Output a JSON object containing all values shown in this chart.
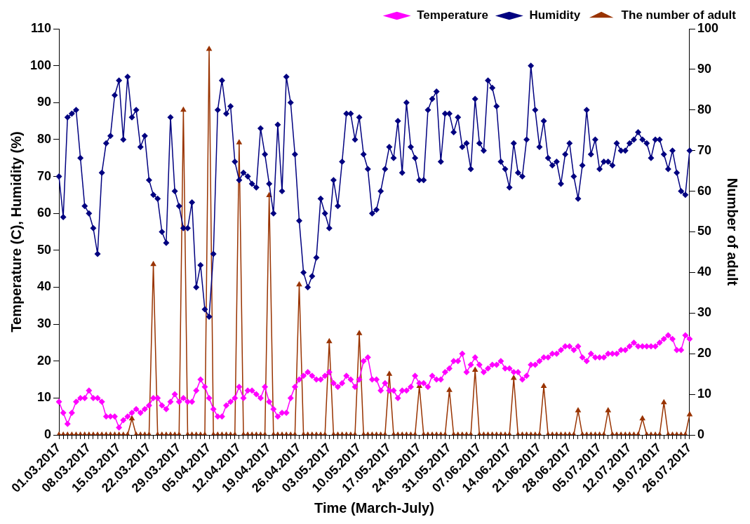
{
  "chart_data": {
    "type": "line",
    "xlabel": "Time (March-July)",
    "ylabel": "Temperature (C), Humidity (%)",
    "y2label": "Number of adult",
    "legend": "top right",
    "categories": [
      "01.03.2017",
      null,
      null,
      null,
      null,
      null,
      null,
      "08.03.2017",
      null,
      null,
      null,
      null,
      null,
      null,
      "15.03.2017",
      null,
      null,
      null,
      null,
      null,
      null,
      "22.03.2017",
      null,
      null,
      null,
      null,
      null,
      null,
      "29.03.2017",
      null,
      null,
      null,
      null,
      null,
      null,
      "05.04.2017",
      null,
      null,
      null,
      null,
      null,
      null,
      "12.04.2017",
      null,
      null,
      null,
      null,
      null,
      null,
      "19.04.2017",
      null,
      null,
      null,
      null,
      null,
      null,
      "26.04.2017",
      null,
      null,
      null,
      null,
      null,
      null,
      "03.05.2017",
      null,
      null,
      null,
      null,
      null,
      null,
      "10.05.2017",
      null,
      null,
      null,
      null,
      null,
      null,
      "17.05.2017",
      null,
      null,
      null,
      null,
      null,
      null,
      "24.05.2017",
      null,
      null,
      null,
      null,
      null,
      null,
      "31.05.2017",
      null,
      null,
      null,
      null,
      null,
      null,
      "07.06.2017",
      null,
      null,
      null,
      null,
      null,
      null,
      "14.06.2017",
      null,
      null,
      null,
      null,
      null,
      null,
      "21.06.2017",
      null,
      null,
      null,
      null,
      null,
      null,
      "28.06.2017",
      null,
      null,
      null,
      null,
      null,
      null,
      "05.07.2017",
      null,
      null,
      null,
      null,
      null,
      null,
      "12.07.2017",
      null,
      null,
      null,
      null,
      null,
      null,
      "19.07.2017",
      null,
      null,
      null,
      null,
      null,
      null,
      "26.07.2017"
    ],
    "ylim": [
      0,
      110
    ],
    "yticks": [
      0,
      10,
      20,
      30,
      40,
      50,
      60,
      70,
      80,
      90,
      100,
      110
    ],
    "y2lim": [
      0,
      100
    ],
    "y2ticks": [
      0,
      10,
      20,
      30,
      40,
      50,
      60,
      70,
      80,
      90,
      100
    ],
    "series": [
      {
        "name": "Temperature",
        "color": "#ff00ff",
        "marker": "diamond",
        "values": [
          9,
          6,
          3,
          6,
          9,
          10,
          10,
          12,
          10,
          10,
          9,
          5,
          5,
          5,
          2,
          4,
          5,
          6,
          7,
          6,
          7,
          8,
          10,
          10,
          8,
          7,
          9,
          11,
          9,
          10,
          9,
          9,
          12,
          15,
          13,
          10,
          7,
          5,
          5,
          8,
          9,
          10,
          13,
          10,
          12,
          12,
          11,
          10,
          13,
          9,
          7,
          5,
          6,
          6,
          10,
          13,
          15,
          16,
          17,
          16,
          15,
          15,
          16,
          17,
          14,
          13,
          14,
          16,
          15,
          13,
          15,
          20,
          21,
          15,
          15,
          12,
          14,
          12,
          12,
          10,
          12,
          12,
          13,
          16,
          14,
          14,
          13,
          16,
          15,
          15,
          17,
          18,
          20,
          20,
          22,
          17,
          19,
          21,
          19,
          17,
          18,
          19,
          19,
          20,
          18,
          18,
          17,
          17,
          15,
          16,
          19,
          19,
          20,
          21,
          21,
          22,
          22,
          23,
          24,
          24,
          23,
          24,
          21,
          20,
          22,
          21,
          21,
          21,
          22,
          22,
          22,
          23,
          23,
          24,
          25,
          24,
          24,
          24,
          24,
          24,
          25,
          26,
          27,
          26,
          23,
          23,
          27,
          26
        ]
      },
      {
        "name": "Humidity",
        "color": "#000080",
        "marker": "diamond",
        "values": [
          70,
          59,
          86,
          87,
          88,
          75,
          62,
          60,
          56,
          49,
          71,
          79,
          81,
          92,
          96,
          80,
          97,
          86,
          88,
          78,
          81,
          69,
          65,
          64,
          55,
          52,
          86,
          66,
          62,
          56,
          56,
          63,
          40,
          46,
          34,
          32,
          49,
          88,
          96,
          87,
          89,
          74,
          69,
          71,
          70,
          68,
          67,
          83,
          76,
          68,
          60,
          84,
          66,
          97,
          90,
          76,
          58,
          44,
          40,
          43,
          48,
          64,
          60,
          56,
          69,
          62,
          74,
          87,
          87,
          80,
          86,
          76,
          72,
          60,
          61,
          66,
          72,
          78,
          75,
          85,
          71,
          90,
          78,
          75,
          69,
          69,
          88,
          91,
          93,
          74,
          87,
          87,
          82,
          86,
          78,
          79,
          72,
          91,
          79,
          77,
          96,
          94,
          89,
          74,
          72,
          67,
          79,
          71,
          70,
          80,
          100,
          88,
          78,
          85,
          75,
          73,
          74,
          68,
          76,
          79,
          70,
          64,
          73,
          88,
          76,
          80,
          72,
          74,
          74,
          73,
          79,
          77,
          77,
          79,
          80,
          82,
          80,
          79,
          75,
          80,
          80,
          76,
          72,
          77,
          71,
          66,
          65,
          77
        ]
      },
      {
        "name": "The number of adult",
        "color": "#993300",
        "marker": "triangle",
        "axis": "y2",
        "values": [
          0,
          0,
          0,
          0,
          0,
          0,
          0,
          0,
          0,
          0,
          0,
          0,
          0,
          0,
          0,
          0,
          0,
          4,
          0,
          0,
          0,
          0,
          42,
          0,
          0,
          0,
          0,
          0,
          0,
          80,
          0,
          0,
          0,
          0,
          0,
          95,
          0,
          0,
          0,
          0,
          0,
          0,
          72,
          0,
          0,
          0,
          0,
          0,
          0,
          59,
          0,
          0,
          0,
          0,
          0,
          0,
          37,
          0,
          0,
          0,
          0,
          0,
          0,
          23,
          0,
          0,
          0,
          0,
          0,
          0,
          25,
          0,
          0,
          0,
          0,
          0,
          0,
          15,
          0,
          0,
          0,
          0,
          0,
          0,
          12,
          0,
          0,
          0,
          0,
          0,
          0,
          11,
          0,
          0,
          0,
          0,
          0,
          16,
          0,
          0,
          0,
          0,
          0,
          0,
          0,
          0,
          14,
          0,
          0,
          0,
          0,
          0,
          0,
          12,
          0,
          0,
          0,
          0,
          0,
          0,
          0,
          6,
          0,
          0,
          0,
          0,
          0,
          0,
          6,
          0,
          0,
          0,
          0,
          0,
          0,
          0,
          4,
          0,
          0,
          0,
          0,
          8,
          0,
          0,
          0,
          0,
          0,
          5
        ]
      }
    ]
  }
}
